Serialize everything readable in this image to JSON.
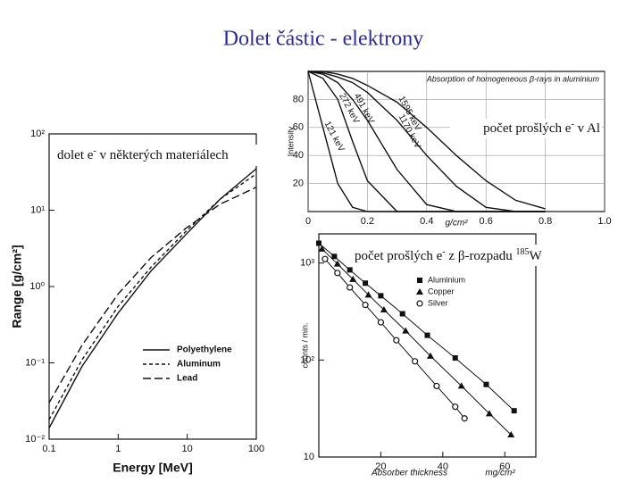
{
  "title": "Dolet částic - elektrony",
  "labels": [
    {
      "text": "počet prošlých e",
      "sup": "-",
      "rest": " v Al"
    },
    {
      "text": "dolet e",
      "sup": "-",
      "rest": " v některých materiálech"
    },
    {
      "text": "počet prošlých e",
      "sup": "-",
      "rest": " z β-rozpadu ",
      "sup2": "185",
      "rest2": "W"
    }
  ],
  "chart_data": [
    {
      "type": "line",
      "xlabel": "Energy [MeV]",
      "ylabel": "Range [g/cm²]",
      "xscale": "log",
      "yscale": "log",
      "x": [
        0.1,
        0.3,
        1,
        3,
        10,
        30,
        100
      ],
      "xlim": [
        0.1,
        100
      ],
      "ylim": [
        0.01,
        100
      ],
      "xticks": [
        0.1,
        1,
        10,
        100
      ],
      "yticks": [
        {
          "value": 0.01,
          "label": "10⁻²"
        },
        {
          "value": 0.1,
          "label": "10⁻¹"
        },
        {
          "value": 1,
          "label": "10⁰"
        },
        {
          "value": 10,
          "label": "10¹"
        },
        {
          "value": 100,
          "label": "10²"
        }
      ],
      "legend": "lower right",
      "series": [
        {
          "name": "Polyethylene",
          "color": "#111111",
          "linestyle": "solid",
          "values": [
            0.014,
            0.09,
            0.45,
            1.6,
            5,
            14,
            35
          ]
        },
        {
          "name": "Aluminum",
          "color": "#111111",
          "linestyle": "dashed",
          "values": [
            0.018,
            0.11,
            0.55,
            1.8,
            5.5,
            14,
            30
          ]
        },
        {
          "name": "Lead",
          "color": "#111111",
          "linestyle": "longdash",
          "values": [
            0.03,
            0.17,
            0.8,
            2.4,
            6,
            12,
            20
          ]
        }
      ]
    },
    {
      "type": "line",
      "title": "Absorption of homogeneous β-rays in aluminium",
      "xlabel": "g/cm²",
      "ylabel": "Intensity",
      "x": [
        0,
        0.05,
        0.1,
        0.15,
        0.2,
        0.3,
        0.4,
        0.5,
        0.6,
        0.7,
        0.8
      ],
      "xlim": [
        0,
        1
      ],
      "ylim": [
        0,
        100
      ],
      "xticks": [
        0,
        0.2,
        0.4,
        0.6,
        0.8,
        {
          "value": 1,
          "label": "1.0"
        }
      ],
      "yticks": [
        20,
        40,
        60,
        80
      ],
      "grid": true,
      "legend": "on-curve",
      "series": [
        {
          "name": "121 keV",
          "color": "#111111",
          "linestyle": "solid",
          "values": [
            100,
            60,
            20,
            3,
            0,
            0,
            0,
            0,
            0,
            0,
            0
          ]
        },
        {
          "name": "272 keV",
          "color": "#111111",
          "linestyle": "solid",
          "values": [
            100,
            95,
            80,
            50,
            22,
            0,
            0,
            0,
            0,
            0,
            0
          ]
        },
        {
          "name": "491 keV",
          "color": "#111111",
          "linestyle": "solid",
          "values": [
            100,
            98,
            92,
            80,
            65,
            30,
            5,
            0,
            0,
            0,
            0
          ]
        },
        {
          "name": "1170 keV",
          "color": "#111111",
          "linestyle": "solid",
          "values": [
            100,
            99,
            96,
            92,
            85,
            65,
            40,
            18,
            3,
            0,
            0
          ]
        },
        {
          "name": "1595 keV",
          "color": "#111111",
          "linestyle": "solid",
          "values": [
            100,
            100,
            98,
            95,
            90,
            78,
            60,
            40,
            22,
            8,
            2
          ]
        }
      ]
    },
    {
      "type": "scatter",
      "xlabel": "Absorber thickness",
      "xunit": "mg/cm²",
      "ylabel": "counts / min.",
      "yscale": "log",
      "xlim": [
        0,
        70
      ],
      "ylim": [
        10,
        2000
      ],
      "xticks": [
        20,
        40,
        60
      ],
      "yticks": [
        10,
        {
          "value": 100,
          "label": "10²"
        },
        {
          "value": 1000,
          "label": "10³"
        }
      ],
      "legend": "upper right",
      "series": [
        {
          "name": "Aluminium",
          "color": "#111111",
          "marker": "square",
          "x": [
            0,
            5,
            10,
            15,
            20,
            27,
            35,
            44,
            54,
            63
          ],
          "values": [
            1600,
            1170,
            850,
            620,
            460,
            300,
            180,
            105,
            56,
            30
          ]
        },
        {
          "name": "Copper",
          "color": "#111111",
          "marker": "triangle",
          "x": [
            1,
            6,
            11,
            16,
            21,
            28,
            36,
            46,
            55,
            62
          ],
          "values": [
            1400,
            980,
            680,
            470,
            330,
            200,
            110,
            54,
            28,
            17
          ]
        },
        {
          "name": "Silver",
          "color": "#111111",
          "marker": "circle",
          "x": [
            2,
            6,
            10,
            15,
            20,
            25,
            31,
            38,
            44,
            47
          ],
          "values": [
            1100,
            790,
            560,
            370,
            245,
            160,
            97,
            54,
            33,
            25
          ]
        }
      ]
    }
  ]
}
